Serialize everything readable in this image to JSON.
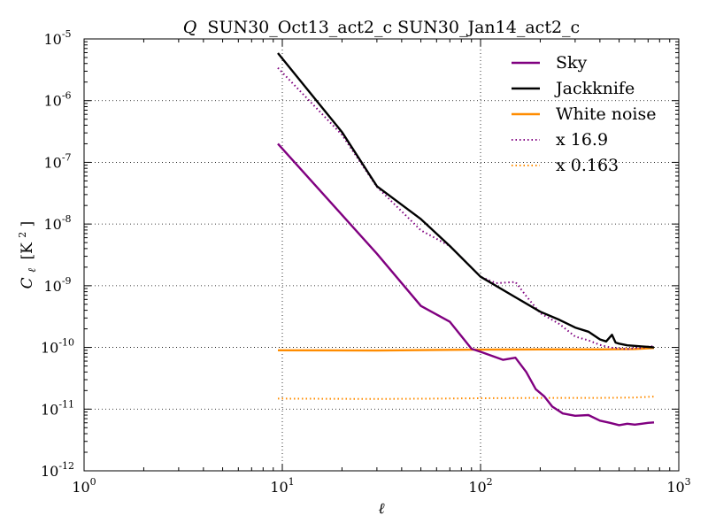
{
  "chart_data": {
    "type": "line",
    "title": "SUN30_Oct13_act2_c SUN30_Jan14_act2_c",
    "title_prefix": "Q",
    "xlabel": "ℓ",
    "ylabel_main": "C",
    "ylabel_sub": "ℓ",
    "ylabel_unit": "[K",
    "ylabel_unit_exp": "2",
    "ylabel_unit_close": "]",
    "xscale": "log",
    "yscale": "log",
    "xlim": [
      1,
      1000
    ],
    "ylim": [
      1e-12,
      1e-05
    ],
    "grid": true,
    "legend_position": "top-right",
    "x_ticks": [
      {
        "value": 1,
        "base": "10",
        "exp": "0"
      },
      {
        "value": 10,
        "base": "10",
        "exp": "1"
      },
      {
        "value": 100,
        "base": "10",
        "exp": "2"
      },
      {
        "value": 1000,
        "base": "10",
        "exp": "3"
      }
    ],
    "y_ticks": [
      {
        "value": 1e-12,
        "base": "10",
        "exp": "-12"
      },
      {
        "value": 1e-11,
        "base": "10",
        "exp": "-11"
      },
      {
        "value": 1e-10,
        "base": "10",
        "exp": "-10"
      },
      {
        "value": 1e-09,
        "base": "10",
        "exp": "-9"
      },
      {
        "value": 1e-08,
        "base": "10",
        "exp": "-8"
      },
      {
        "value": 1e-07,
        "base": "10",
        "exp": "-7"
      },
      {
        "value": 1e-06,
        "base": "10",
        "exp": "-6"
      },
      {
        "value": 1e-05,
        "base": "10",
        "exp": "-5"
      }
    ],
    "series": [
      {
        "name": "Sky",
        "color": "#800080",
        "style": "solid",
        "x": [
          9.5,
          30,
          50,
          70,
          90,
          100,
          130,
          150,
          170,
          190,
          210,
          230,
          260,
          300,
          350,
          400,
          450,
          500,
          550,
          600,
          650,
          700,
          750
        ],
        "y": [
          2e-07,
          3.3e-09,
          4.7e-10,
          2.6e-10,
          9.5e-11,
          8.5e-11,
          6.3e-11,
          6.8e-11,
          4e-11,
          2.1e-11,
          1.6e-11,
          1.1e-11,
          8.5e-12,
          7.8e-12,
          8e-12,
          6.5e-12,
          6e-12,
          5.5e-12,
          5.8e-12,
          5.6e-12,
          5.8e-12,
          6e-12,
          6.1e-12
        ]
      },
      {
        "name": "Jackknife",
        "color": "#000000",
        "style": "solid",
        "x": [
          9.5,
          20,
          30,
          50,
          70,
          100,
          150,
          200,
          250,
          300,
          350,
          400,
          430,
          460,
          480,
          500,
          550,
          600,
          650,
          700,
          750
        ],
        "y": [
          5.9e-06,
          3.1e-07,
          4.1e-08,
          1.2e-08,
          4.4e-09,
          1.4e-09,
          6.5e-10,
          3.8e-10,
          2.8e-10,
          2.1e-10,
          1.8e-10,
          1.35e-10,
          1.25e-10,
          1.6e-10,
          1.2e-10,
          1.15e-10,
          1.08e-10,
          1.06e-10,
          1.04e-10,
          1.02e-10,
          1e-10
        ]
      },
      {
        "name": "White noise",
        "color": "#ff8c00",
        "style": "solid",
        "x": [
          9.5,
          30,
          60,
          100,
          200,
          400,
          600,
          750
        ],
        "y": [
          9e-11,
          8.9e-11,
          9.1e-11,
          9.2e-11,
          9.3e-11,
          9.3e-11,
          9.4e-11,
          9.8e-11
        ]
      },
      {
        "name": "x 16.9",
        "color": "#800080",
        "style": "dotted",
        "x": [
          9.5,
          20,
          30,
          50,
          70,
          100,
          120,
          150,
          170,
          200,
          250,
          300,
          350,
          400,
          450,
          500,
          550,
          600,
          650,
          700,
          750
        ],
        "y": [
          3.4e-06,
          2.8e-07,
          4e-08,
          7.9e-09,
          4.4e-09,
          1.4e-09,
          1.1e-09,
          1.15e-09,
          6.8e-10,
          3.6e-10,
          2.4e-10,
          1.5e-10,
          1.3e-10,
          1.1e-10,
          1e-10,
          9.6e-11,
          9.4e-11,
          9.8e-11,
          9.8e-11,
          1.03e-10,
          1.05e-10
        ]
      },
      {
        "name": "x 0.163",
        "color": "#ff8c00",
        "style": "dotted",
        "x": [
          9.5,
          30,
          60,
          100,
          200,
          400,
          600,
          750
        ],
        "y": [
          1.48e-11,
          1.46e-11,
          1.48e-11,
          1.5e-11,
          1.52e-11,
          1.52e-11,
          1.54e-11,
          1.6e-11
        ]
      }
    ]
  }
}
